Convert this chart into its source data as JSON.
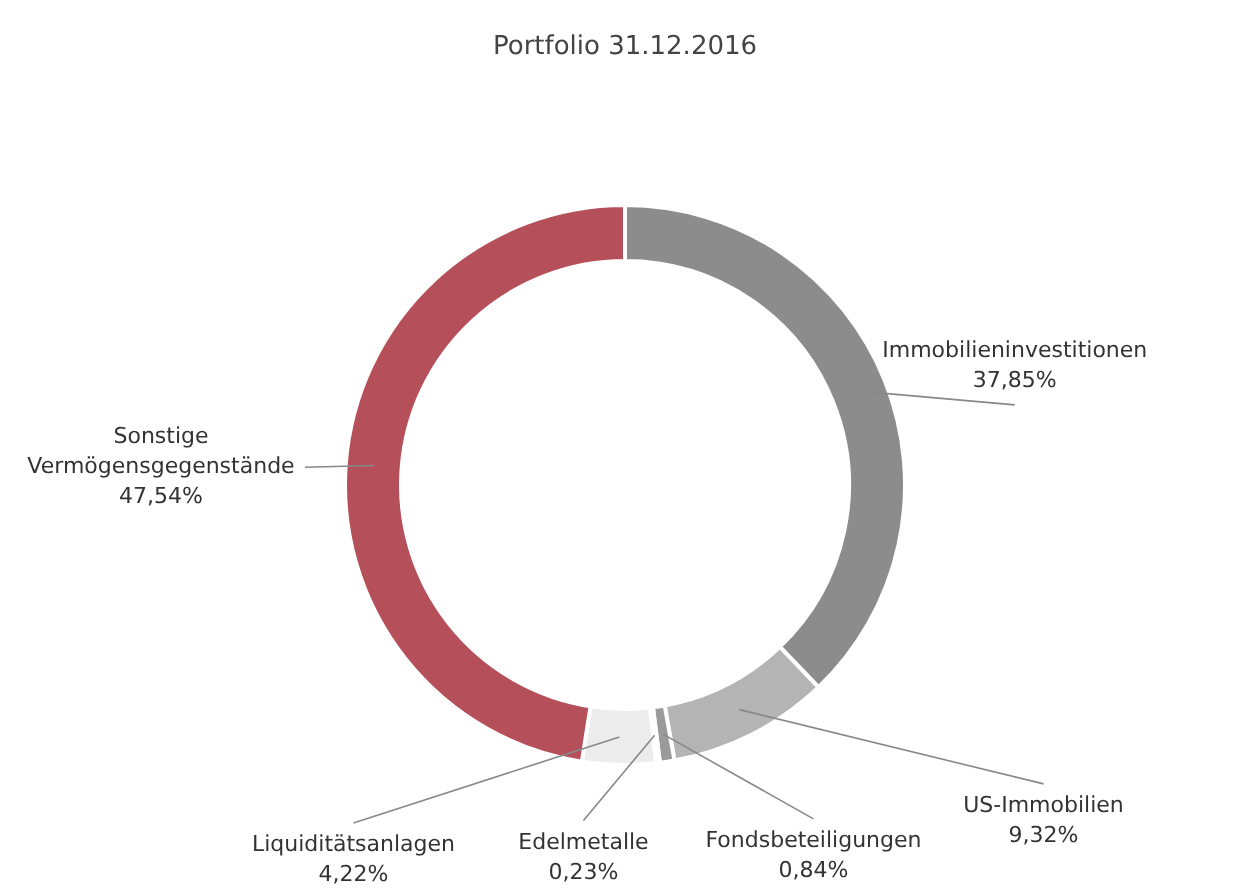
{
  "chart_data": {
    "type": "donut",
    "title": "Portfolio 31.12.2016",
    "categories": [
      "Immobilieninvestitionen",
      "US-Immobilien",
      "Fondsbeteiligungen",
      "Edelmetalle",
      "Liquiditätsanlagen",
      "Sonstige Vermögensgegenstände"
    ],
    "values": [
      37.85,
      9.32,
      0.84,
      0.23,
      4.22,
      47.54
    ],
    "value_labels": [
      "37,85%",
      "9,32%",
      "0,84%",
      "0,23%",
      "4,22%",
      "47,54%"
    ],
    "colors": [
      "#8c8c8c",
      "#b4b4b4",
      "#9a9a9a",
      "#c8c8c8",
      "#ececec",
      "#b5505a"
    ]
  }
}
